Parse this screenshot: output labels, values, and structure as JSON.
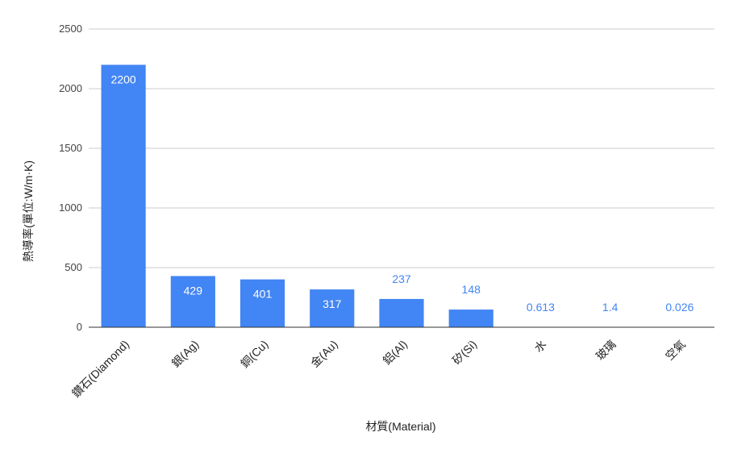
{
  "chart_data": {
    "type": "bar",
    "xlabel": "材質(Material)",
    "ylabel": "熱導率(單位:W/m·K)",
    "ylim": [
      0,
      2500
    ],
    "yticks": [
      0,
      500,
      1000,
      1500,
      2000,
      2500
    ],
    "grid": true,
    "legend": "none",
    "bar_color": "#4285f4",
    "inside_label_color": "#ffffff",
    "outside_label_color": "#4285f4",
    "categories": [
      "鑽石(Diamond)",
      "銀(Ag)",
      "銅(Cu)",
      "金(Au)",
      "鋁(Al)",
      "矽(Si)",
      "水",
      "玻璃",
      "空氣"
    ],
    "values": [
      2200,
      429,
      401,
      317,
      237,
      148,
      0.613,
      1.4,
      0.026
    ],
    "data_labels": [
      "2200",
      "429",
      "401",
      "317",
      "237",
      "148",
      "0.613",
      "1.4",
      "0.026"
    ]
  }
}
